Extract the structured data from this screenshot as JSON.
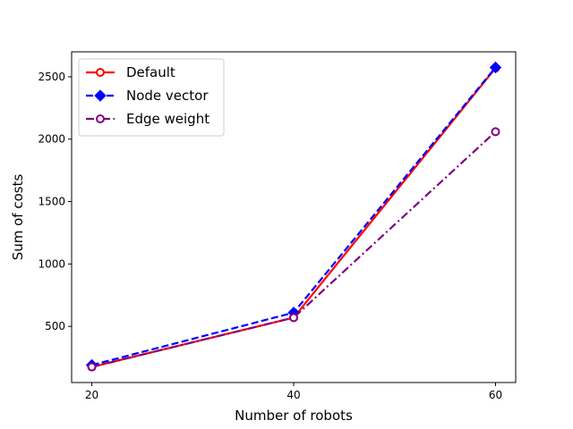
{
  "chart_data": {
    "type": "line",
    "title": "",
    "xlabel": "Number of robots",
    "ylabel": "Sum of costs",
    "x": [
      20,
      40,
      60
    ],
    "xticks": [
      20,
      40,
      60
    ],
    "yticks": [
      500,
      1000,
      1500,
      2000,
      2500
    ],
    "xlim": [
      18,
      62
    ],
    "ylim": [
      50,
      2700
    ],
    "grid": false,
    "legend_position": "top-left",
    "series": [
      {
        "name": "Default",
        "values": [
          175,
          570,
          2570
        ],
        "color": "#ff0000",
        "line_style": "solid",
        "marker": "hollow-circle"
      },
      {
        "name": "Node vector",
        "values": [
          190,
          610,
          2575
        ],
        "color": "#0000ff",
        "line_style": "dashed",
        "marker": "diamond"
      },
      {
        "name": "Edge weight",
        "values": [
          175,
          570,
          2060
        ],
        "color": "#800080",
        "line_style": "dash-dot",
        "marker": "hollow-circle"
      }
    ]
  }
}
